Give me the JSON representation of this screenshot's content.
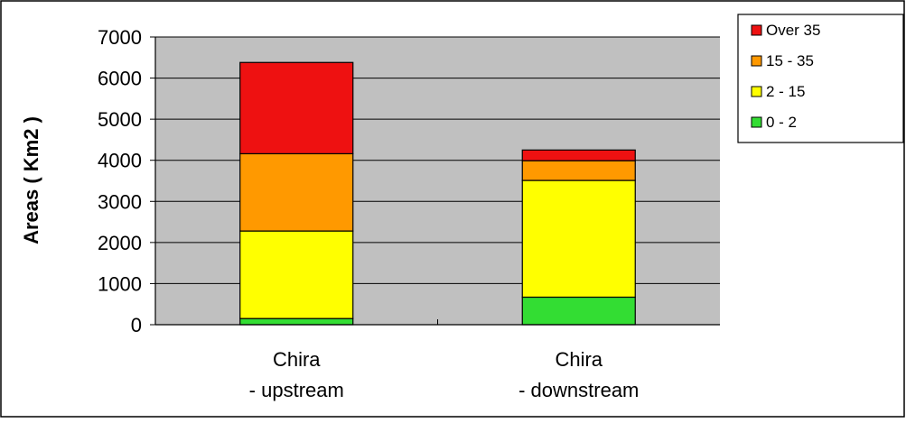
{
  "chart_data": {
    "type": "bar",
    "stacked": true,
    "categories": [
      [
        "Chira",
        "- upstream"
      ],
      [
        "Chira",
        "- downstream"
      ]
    ],
    "series": [
      {
        "name": "0 - 2",
        "values": [
          150,
          670
        ],
        "color": "#33dd33"
      },
      {
        "name": "2 - 15",
        "values": [
          2130,
          2840
        ],
        "color": "#ffff00"
      },
      {
        "name": "15 - 35",
        "values": [
          1880,
          480
        ],
        "color": "#ff9900"
      },
      {
        "name": "Over 35",
        "values": [
          2220,
          260
        ],
        "color": "#ee1111"
      }
    ],
    "ylabel": "Areas ( Km2 )",
    "xlabel": "",
    "title": "",
    "ylim": [
      0,
      7000
    ],
    "yticks": [
      0,
      1000,
      2000,
      3000,
      4000,
      5000,
      6000,
      7000
    ],
    "grid": true,
    "legend": "top-right",
    "plot_background": "#c0c0c0"
  }
}
